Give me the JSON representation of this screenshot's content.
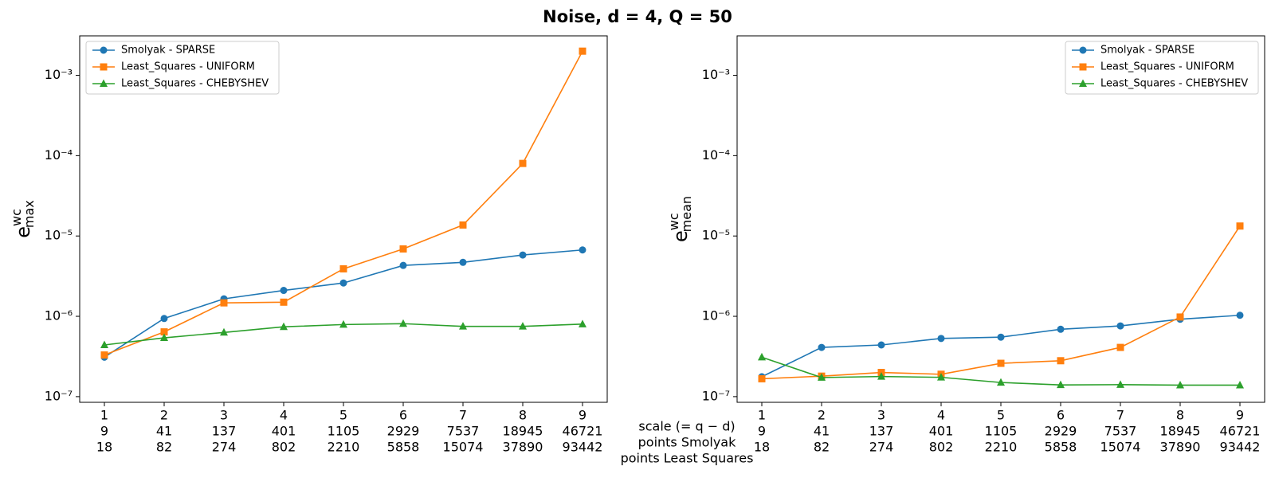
{
  "title": "Noise, d = 4, Q = 50",
  "x_row_labels": [
    "scale (= q − d)",
    "points Smolyak",
    "points Least Squares"
  ],
  "chart_data": [
    {
      "type": "line",
      "ylabel": {
        "base": "e",
        "sup": "wc",
        "sub": "max"
      },
      "categories": [
        "1",
        "2",
        "3",
        "4",
        "5",
        "6",
        "7",
        "8",
        "9"
      ],
      "points_smolyak": [
        "9",
        "41",
        "137",
        "401",
        "1105",
        "2929",
        "7537",
        "18945",
        "46721"
      ],
      "points_least_squares": [
        "18",
        "82",
        "274",
        "802",
        "2210",
        "5858",
        "15074",
        "37890",
        "93442"
      ],
      "log_y": true,
      "ylim": [
        8.5e-08,
        0.0031
      ],
      "legend": "upper left",
      "yticks": [
        {
          "value": 1e-07,
          "label": "10⁻⁷"
        },
        {
          "value": 1e-06,
          "label": "10⁻⁶"
        },
        {
          "value": 1e-05,
          "label": "10⁻⁵"
        },
        {
          "value": 0.0001,
          "label": "10⁻⁴"
        },
        {
          "value": 0.001,
          "label": "10⁻³"
        }
      ],
      "series": [
        {
          "name": "Smolyak - SPARSE",
          "color": "#1f77b4",
          "marker": "circle",
          "values": [
            3.1e-07,
            9.4e-07,
            1.65e-06,
            2.1e-06,
            2.6e-06,
            4.3e-06,
            4.7e-06,
            5.8e-06,
            6.7e-06
          ]
        },
        {
          "name": "Least_Squares - UNIFORM",
          "color": "#ff7f0e",
          "marker": "square",
          "values": [
            3.3e-07,
            6.4e-07,
            1.47e-06,
            1.5e-06,
            3.9e-06,
            6.9e-06,
            1.37e-05,
            8e-05,
            0.002
          ]
        },
        {
          "name": "Least_Squares - CHEBYSHEV",
          "color": "#2ca02c",
          "marker": "triangle",
          "values": [
            4.4e-07,
            5.4e-07,
            6.3e-07,
            7.4e-07,
            7.9e-07,
            8.1e-07,
            7.5e-07,
            7.5e-07,
            8e-07
          ]
        }
      ]
    },
    {
      "type": "line",
      "ylabel": {
        "base": "e",
        "sup": "wc",
        "sub": "mean"
      },
      "categories": [
        "1",
        "2",
        "3",
        "4",
        "5",
        "6",
        "7",
        "8",
        "9"
      ],
      "points_smolyak": [
        "9",
        "41",
        "137",
        "401",
        "1105",
        "2929",
        "7537",
        "18945",
        "46721"
      ],
      "points_least_squares": [
        "18",
        "82",
        "274",
        "802",
        "2210",
        "5858",
        "15074",
        "37890",
        "93442"
      ],
      "log_y": true,
      "ylim": [
        8.5e-08,
        0.0031
      ],
      "legend": "upper right",
      "yticks": [
        {
          "value": 1e-07,
          "label": "10⁻⁷"
        },
        {
          "value": 1e-06,
          "label": "10⁻⁶"
        },
        {
          "value": 1e-05,
          "label": "10⁻⁵"
        },
        {
          "value": 0.0001,
          "label": "10⁻⁴"
        },
        {
          "value": 0.001,
          "label": "10⁻³"
        }
      ],
      "series": [
        {
          "name": "Smolyak - SPARSE",
          "color": "#1f77b4",
          "marker": "circle",
          "values": [
            1.77e-07,
            4.1e-07,
            4.4e-07,
            5.3e-07,
            5.5e-07,
            6.9e-07,
            7.6e-07,
            9.2e-07,
            1.03e-06
          ]
        },
        {
          "name": "Least_Squares - UNIFORM",
          "color": "#ff7f0e",
          "marker": "square",
          "values": [
            1.67e-07,
            1.8e-07,
            2e-07,
            1.9e-07,
            2.6e-07,
            2.8e-07,
            4.1e-07,
            9.8e-07,
            1.33e-05
          ]
        },
        {
          "name": "Least_Squares - CHEBYSHEV",
          "color": "#2ca02c",
          "marker": "triangle",
          "values": [
            3.1e-07,
            1.73e-07,
            1.78e-07,
            1.74e-07,
            1.5e-07,
            1.4e-07,
            1.41e-07,
            1.39e-07,
            1.39e-07
          ]
        }
      ]
    }
  ]
}
